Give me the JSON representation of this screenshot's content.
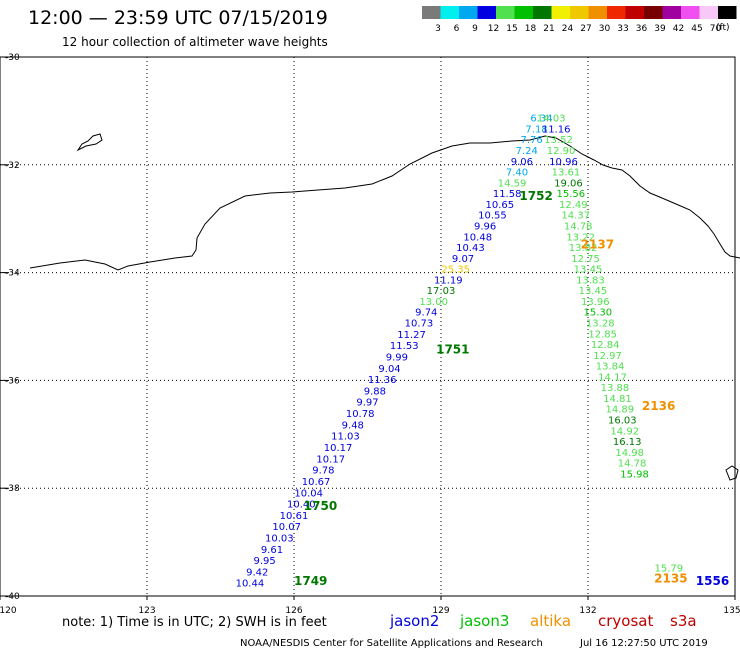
{
  "header": {
    "title": "12:00 — 23:59 UTC 07/15/2019",
    "subtitle": "12 hour collection of altimeter wave heights"
  },
  "color_scale": {
    "unit": "(ft)",
    "entries": [
      {
        "label": "3",
        "color": "#7a7a7a"
      },
      {
        "label": "6",
        "color": "#00f0f0"
      },
      {
        "label": "9",
        "color": "#00a8f0"
      },
      {
        "label": "12",
        "color": "#0000e0"
      },
      {
        "label": "15",
        "color": "#50e050"
      },
      {
        "label": "18",
        "color": "#00c000"
      },
      {
        "label": "21",
        "color": "#007800"
      },
      {
        "label": "24",
        "color": "#f0f000"
      },
      {
        "label": "27",
        "color": "#f0c800"
      },
      {
        "label": "30",
        "color": "#f09000"
      },
      {
        "label": "33",
        "color": "#f02800"
      },
      {
        "label": "36",
        "color": "#c00000"
      },
      {
        "label": "39",
        "color": "#780000"
      },
      {
        "label": "42",
        "color": "#a000a0"
      },
      {
        "label": "45",
        "color": "#f050f0"
      },
      {
        "label": "70",
        "color": "#f8c8f8"
      },
      {
        "label": "",
        "color": "#000000"
      }
    ]
  },
  "axes": {
    "lon": [
      "120",
      "123",
      "126",
      "129",
      "132",
      "135"
    ],
    "lat": [
      "-30",
      "-32",
      "-34",
      "-36",
      "-38",
      "-40"
    ]
  },
  "tracks": [
    {
      "id": "t1749",
      "time": "1749",
      "time_color": "#007800",
      "time_lon": 126.0,
      "time_lat": -39.8,
      "points": [
        {
          "lon": 125.1,
          "lat": -39.82,
          "v": "10.44",
          "c": "#0000e0"
        },
        {
          "lon": 125.25,
          "lat": -39.62,
          "v": "9.42",
          "c": "#0000e0"
        },
        {
          "lon": 125.4,
          "lat": -39.41,
          "v": "9.95",
          "c": "#0000e0"
        },
        {
          "lon": 125.55,
          "lat": -39.2,
          "v": "9.61",
          "c": "#0000e0"
        },
        {
          "lon": 125.7,
          "lat": -38.99,
          "v": "10.03",
          "c": "#0000e0"
        },
        {
          "lon": 125.85,
          "lat": -38.78,
          "v": "10.07",
          "c": "#0000e0"
        },
        {
          "lon": 126.0,
          "lat": -38.57,
          "v": "10.61",
          "c": "#0000e0"
        },
        {
          "lon": 126.15,
          "lat": -38.36,
          "v": "10.40",
          "c": "#0000e0"
        },
        {
          "lon": 126.3,
          "lat": -38.15,
          "v": "10.04",
          "c": "#0000e0"
        },
        {
          "lon": 126.45,
          "lat": -37.94,
          "v": "10.67",
          "c": "#0000e0"
        },
        {
          "lon": 126.6,
          "lat": -37.73,
          "v": "9.78",
          "c": "#0000e0"
        },
        {
          "lon": 126.75,
          "lat": -37.52,
          "v": "10.17",
          "c": "#0000e0"
        },
        {
          "lon": 126.9,
          "lat": -37.31,
          "v": "10.17",
          "c": "#0000e0"
        },
        {
          "lon": 127.05,
          "lat": -37.1,
          "v": "11.03",
          "c": "#0000e0"
        },
        {
          "lon": 127.2,
          "lat": -36.89,
          "v": "9.48",
          "c": "#0000e0"
        },
        {
          "lon": 127.35,
          "lat": -36.68,
          "v": "10.78",
          "c": "#0000e0"
        },
        {
          "lon": 127.5,
          "lat": -36.47,
          "v": "9.97",
          "c": "#0000e0"
        },
        {
          "lon": 127.65,
          "lat": -36.26,
          "v": "9.88",
          "c": "#0000e0"
        },
        {
          "lon": 127.8,
          "lat": -36.05,
          "v": "11.36",
          "c": "#0000e0"
        },
        {
          "lon": 127.95,
          "lat": -35.84,
          "v": "9.04",
          "c": "#0000e0"
        },
        {
          "lon": 128.1,
          "lat": -35.63,
          "v": "9.99",
          "c": "#0000e0"
        },
        {
          "lon": 128.25,
          "lat": -35.42,
          "v": "11.53",
          "c": "#0000e0"
        },
        {
          "lon": 128.4,
          "lat": -35.21,
          "v": "11.27",
          "c": "#0000e0"
        }
      ]
    },
    {
      "id": "t1750",
      "time": "1750",
      "time_color": "#007800",
      "time_lon": 126.2,
      "time_lat": -38.4,
      "points": []
    },
    {
      "id": "t1751",
      "time": "1751",
      "time_color": "#007800",
      "time_lon": 128.9,
      "time_lat": -35.5,
      "points": [
        {
          "lon": 128.55,
          "lat": -35.0,
          "v": "10.73",
          "c": "#0000e0"
        },
        {
          "lon": 128.7,
          "lat": -34.8,
          "v": "9.74",
          "c": "#0000e0"
        },
        {
          "lon": 128.85,
          "lat": -34.6,
          "v": "13.00",
          "c": "#50e050"
        },
        {
          "lon": 129.0,
          "lat": -34.4,
          "v": "17.03",
          "c": "#007800"
        },
        {
          "lon": 129.15,
          "lat": -34.2,
          "v": "11.19",
          "c": "#0000e0"
        },
        {
          "lon": 129.3,
          "lat": -34.0,
          "v": "25.35",
          "c": "#f0c800"
        },
        {
          "lon": 129.45,
          "lat": -33.8,
          "v": "9.07",
          "c": "#0000e0"
        },
        {
          "lon": 129.6,
          "lat": -33.6,
          "v": "10.43",
          "c": "#0000e0"
        },
        {
          "lon": 129.75,
          "lat": -33.4,
          "v": "10.48",
          "c": "#0000e0"
        },
        {
          "lon": 129.9,
          "lat": -33.2,
          "v": "9.96",
          "c": "#0000e0"
        },
        {
          "lon": 130.05,
          "lat": -33.0,
          "v": "10.55",
          "c": "#0000e0"
        },
        {
          "lon": 130.2,
          "lat": -32.8,
          "v": "10.65",
          "c": "#0000e0"
        },
        {
          "lon": 130.35,
          "lat": -32.6,
          "v": "11.58",
          "c": "#0000e0"
        }
      ]
    },
    {
      "id": "t1752",
      "time": "1752",
      "time_color": "#007800",
      "time_lon": 130.6,
      "time_lat": -32.65,
      "points": [
        {
          "lon": 130.45,
          "lat": -32.4,
          "v": "14.59",
          "c": "#50e050"
        },
        {
          "lon": 130.55,
          "lat": -32.2,
          "v": "7.40",
          "c": "#00a8f0"
        },
        {
          "lon": 130.65,
          "lat": -32.0,
          "v": "9.06",
          "c": "#0000e0"
        },
        {
          "lon": 130.75,
          "lat": -31.8,
          "v": "7.24",
          "c": "#00a8f0"
        },
        {
          "lon": 130.85,
          "lat": -31.6,
          "v": "7.76",
          "c": "#00a8f0"
        },
        {
          "lon": 130.95,
          "lat": -31.4,
          "v": "7.18",
          "c": "#00a8f0"
        },
        {
          "lon": 131.05,
          "lat": -31.2,
          "v": "6.34",
          "c": "#00a8f0"
        }
      ]
    },
    {
      "id": "t2137",
      "time": "2137",
      "time_color": "#f09000",
      "time_lon": 131.85,
      "time_lat": -33.55,
      "points": [
        {
          "lon": 131.25,
          "lat": -31.2,
          "v": "14.03",
          "c": "#50e050"
        },
        {
          "lon": 131.35,
          "lat": -31.4,
          "v": "11.16",
          "c": "#0000e0"
        },
        {
          "lon": 131.4,
          "lat": -31.6,
          "v": "13.52",
          "c": "#50e050"
        },
        {
          "lon": 131.45,
          "lat": -31.8,
          "v": "12.90",
          "c": "#50e050"
        },
        {
          "lon": 131.5,
          "lat": -32.0,
          "v": "10.96",
          "c": "#0000e0"
        },
        {
          "lon": 131.55,
          "lat": -32.2,
          "v": "13.61",
          "c": "#50e050"
        },
        {
          "lon": 131.6,
          "lat": -32.4,
          "v": "19.06",
          "c": "#007800"
        },
        {
          "lon": 131.65,
          "lat": -32.6,
          "v": "15.56",
          "c": "#00c000"
        },
        {
          "lon": 131.7,
          "lat": -32.8,
          "v": "12.49",
          "c": "#50e050"
        },
        {
          "lon": 131.75,
          "lat": -33.0,
          "v": "14.37",
          "c": "#50e050"
        },
        {
          "lon": 131.8,
          "lat": -33.2,
          "v": "14.78",
          "c": "#50e050"
        },
        {
          "lon": 131.85,
          "lat": -33.4,
          "v": "13.22",
          "c": "#50e050"
        },
        {
          "lon": 131.9,
          "lat": -33.6,
          "v": "13.82",
          "c": "#50e050"
        },
        {
          "lon": 131.95,
          "lat": -33.8,
          "v": "12.75",
          "c": "#50e050"
        },
        {
          "lon": 132.0,
          "lat": -34.0,
          "v": "13.45",
          "c": "#50e050"
        },
        {
          "lon": 132.05,
          "lat": -34.2,
          "v": "13.83",
          "c": "#50e050"
        }
      ]
    },
    {
      "id": "t2136",
      "time": "2136",
      "time_color": "#f09000",
      "time_lon": 133.1,
      "time_lat": -36.55,
      "points": [
        {
          "lon": 132.1,
          "lat": -34.4,
          "v": "13.45",
          "c": "#50e050"
        },
        {
          "lon": 132.15,
          "lat": -34.6,
          "v": "13.96",
          "c": "#50e050"
        },
        {
          "lon": 132.2,
          "lat": -34.8,
          "v": "15.30",
          "c": "#00c000"
        },
        {
          "lon": 132.25,
          "lat": -35.0,
          "v": "13.28",
          "c": "#50e050"
        },
        {
          "lon": 132.3,
          "lat": -35.2,
          "v": "12.85",
          "c": "#50e050"
        },
        {
          "lon": 132.35,
          "lat": -35.4,
          "v": "12.84",
          "c": "#50e050"
        },
        {
          "lon": 132.4,
          "lat": -35.6,
          "v": "12.97",
          "c": "#50e050"
        },
        {
          "lon": 132.45,
          "lat": -35.8,
          "v": "13.84",
          "c": "#50e050"
        },
        {
          "lon": 132.5,
          "lat": -36.0,
          "v": "14.17",
          "c": "#50e050"
        },
        {
          "lon": 132.55,
          "lat": -36.2,
          "v": "13.88",
          "c": "#50e050"
        },
        {
          "lon": 132.6,
          "lat": -36.4,
          "v": "14.81",
          "c": "#50e050"
        },
        {
          "lon": 132.65,
          "lat": -36.6,
          "v": "14.89",
          "c": "#50e050"
        },
        {
          "lon": 132.7,
          "lat": -36.8,
          "v": "16.03",
          "c": "#007800"
        },
        {
          "lon": 132.75,
          "lat": -37.0,
          "v": "14.92",
          "c": "#50e050"
        },
        {
          "lon": 132.8,
          "lat": -37.2,
          "v": "16.13",
          "c": "#007800"
        },
        {
          "lon": 132.85,
          "lat": -37.4,
          "v": "14.98",
          "c": "#50e050"
        },
        {
          "lon": 132.9,
          "lat": -37.6,
          "v": "14.78",
          "c": "#50e050"
        },
        {
          "lon": 132.95,
          "lat": -37.8,
          "v": "15.98",
          "c": "#00c000"
        }
      ]
    },
    {
      "id": "t2135",
      "time": "2135",
      "time_color": "#f09000",
      "time_lon": 133.35,
      "time_lat": -39.75,
      "points": [
        {
          "lon": 133.65,
          "lat": -39.55,
          "v": "15.79",
          "c": "#50e050"
        }
      ]
    },
    {
      "id": "t1556",
      "time": "1556",
      "time_color": "#0000e0",
      "time_lon": 134.2,
      "time_lat": -39.8,
      "points": []
    }
  ],
  "legend": {
    "note": "note: 1) Time is in UTC; 2) SWH is in feet",
    "satellites": [
      {
        "name": "jason2",
        "color": "#0000e0"
      },
      {
        "name": "jason3",
        "color": "#00c000"
      },
      {
        "name": "altika",
        "color": "#f09000"
      },
      {
        "name": "cryosat",
        "color": "#c00000"
      },
      {
        "name": "s3a",
        "color": "#c00000"
      }
    ]
  },
  "footer": {
    "credit": "NOAA/NESDIS Center for Satellite Applications and Research",
    "timestamp": "Jul 16 12:27:50 UTC 2019"
  }
}
